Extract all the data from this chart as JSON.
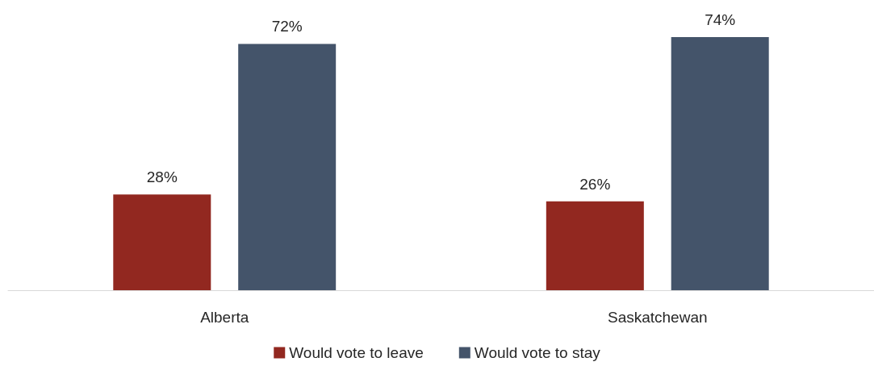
{
  "chart_data": {
    "type": "bar",
    "categories": [
      "Alberta",
      "Saskatchewan"
    ],
    "series": [
      {
        "name": "Would vote to leave",
        "color": "#922820",
        "values": [
          28,
          26
        ],
        "value_labels": [
          "28%",
          "26%"
        ]
      },
      {
        "name": "Would vote to stay",
        "color": "#44546a",
        "values": [
          72,
          74
        ],
        "value_labels": [
          "72%",
          "74%"
        ]
      }
    ],
    "legend": "bottom"
  }
}
